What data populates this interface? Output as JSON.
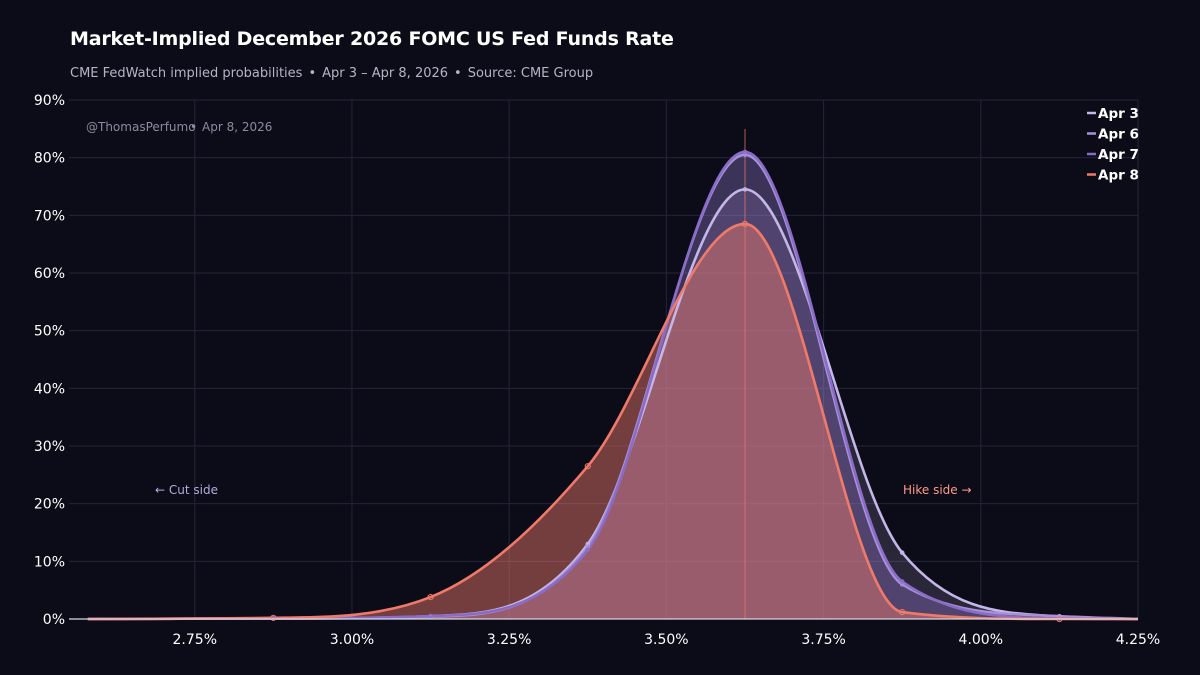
{
  "header": {
    "title": "Market-Implied December 2026 FOMC US Fed Funds Rate",
    "subtitle_parts": [
      "CME FedWatch implied probabilities",
      "Apr 3 – Apr 8, 2026",
      "Source: CME Group"
    ],
    "separator": "•"
  },
  "watermark": {
    "handle": "@ThomasPerfumo",
    "separator": "•",
    "date": "Apr 8, 2026"
  },
  "annotations": {
    "cut_side": "← Cut side",
    "hike_side": "Hike side →"
  },
  "colors": {
    "background": "#0c0c18",
    "grid": "#24243a",
    "apr3": "#c4b6e6",
    "apr6": "#a690d8",
    "apr7": "#8a6cc8",
    "apr8": "#f07a6a",
    "mode_line": "#f07a6a"
  },
  "chart_data": {
    "type": "area",
    "title": "Market-Implied December 2026 FOMC US Fed Funds Rate",
    "xlabel": "",
    "ylabel": "",
    "xlim": [
      2.55,
      4.25
    ],
    "ylim": [
      0,
      90
    ],
    "x_ticks": [
      2.75,
      3.0,
      3.25,
      3.5,
      3.75,
      4.0,
      4.25
    ],
    "x_tick_labels": [
      "2.75%",
      "3.00%",
      "3.25%",
      "3.50%",
      "3.75%",
      "4.00%",
      "4.25%"
    ],
    "y_ticks": [
      0,
      10,
      20,
      30,
      40,
      50,
      60,
      70,
      80,
      90
    ],
    "y_tick_labels": [
      "0%",
      "10%",
      "20%",
      "30%",
      "40%",
      "50%",
      "60%",
      "70%",
      "80%",
      "90%"
    ],
    "grid": true,
    "legend_position": "top-right",
    "mode_marker_x": 3.625,
    "series": [
      {
        "name": "Apr 3",
        "color_key": "apr3",
        "x": [
          2.875,
          3.125,
          3.375,
          3.625,
          3.875,
          4.125
        ],
        "y": [
          0.1,
          0.5,
          13.0,
          74.5,
          11.5,
          0.4
        ]
      },
      {
        "name": "Apr 6",
        "color_key": "apr6",
        "x": [
          2.875,
          3.125,
          3.375,
          3.625,
          3.875,
          4.125
        ],
        "y": [
          0.1,
          0.4,
          12.5,
          80.5,
          6.0,
          0.5
        ]
      },
      {
        "name": "Apr 7",
        "color_key": "apr7",
        "x": [
          2.875,
          3.125,
          3.375,
          3.625,
          3.875,
          4.125
        ],
        "y": [
          0.1,
          0.5,
          12.0,
          81.0,
          6.5,
          0.1
        ]
      },
      {
        "name": "Apr 8",
        "color_key": "apr8",
        "x": [
          2.875,
          3.125,
          3.375,
          3.625,
          3.875,
          4.125
        ],
        "y": [
          0.2,
          3.8,
          26.5,
          68.5,
          1.2,
          0.0
        ]
      }
    ]
  }
}
